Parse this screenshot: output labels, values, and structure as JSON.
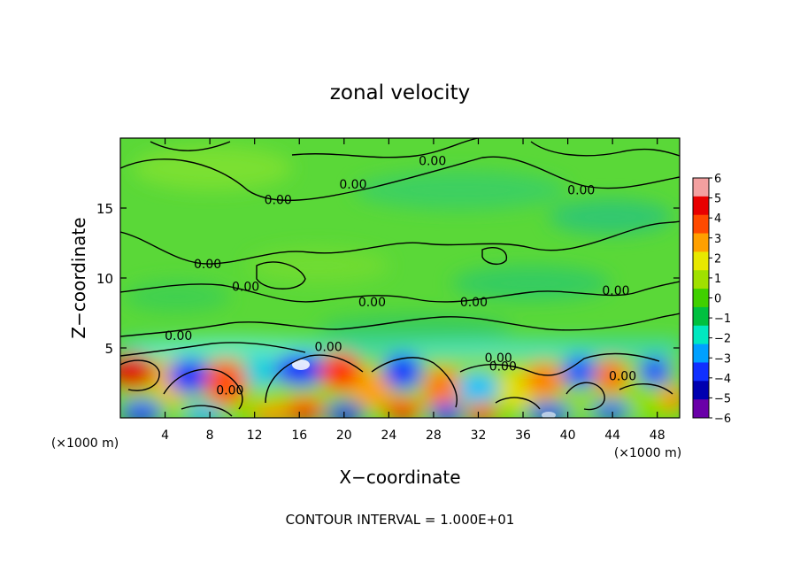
{
  "chart_data": {
    "type": "heatmap",
    "title": "zonal velocity",
    "xlabel": "X−coordinate",
    "ylabel": "Z−coordinate",
    "x_unit_label_left": "(×1000 m)",
    "x_unit_label_right": "(×1000 m)",
    "footer": "CONTOUR INTERVAL = 1.000E+01",
    "xlim": [
      0,
      50
    ],
    "ylim": [
      0,
      20
    ],
    "x_ticks": [
      4,
      8,
      12,
      16,
      20,
      24,
      28,
      32,
      36,
      40,
      44,
      48
    ],
    "y_ticks": [
      5,
      10,
      15
    ],
    "grid": false,
    "colorbar": {
      "range": [
        -6,
        6
      ],
      "tick_labels": [
        "6",
        "5",
        "4",
        "3",
        "2",
        "1",
        "0",
        "−1",
        "−2",
        "−3",
        "−4",
        "−5",
        "−6"
      ],
      "colors": [
        "#f3a0a0",
        "#e80000",
        "#ff4a00",
        "#ffa000",
        "#e8e800",
        "#a0e000",
        "#40d000",
        "#00c040",
        "#00e8c0",
        "#00a0ff",
        "#1030ff",
        "#0000b0",
        "#6a00a8"
      ]
    },
    "contour_labels": [
      {
        "text": "0.00",
        "x": 27.9,
        "y": 18.4
      },
      {
        "text": "0.00",
        "x": 14.1,
        "y": 15.6
      },
      {
        "text": "0.00",
        "x": 20.8,
        "y": 16.7
      },
      {
        "text": "0.00",
        "x": 41.2,
        "y": 16.3
      },
      {
        "text": "0.00",
        "x": 7.8,
        "y": 11.0
      },
      {
        "text": "0.00",
        "x": 11.2,
        "y": 9.4
      },
      {
        "text": "0.00",
        "x": 22.5,
        "y": 8.3
      },
      {
        "text": "0.00",
        "x": 31.6,
        "y": 8.3
      },
      {
        "text": "0.00",
        "x": 44.3,
        "y": 9.1
      },
      {
        "text": "0.00",
        "x": 5.2,
        "y": 5.9
      },
      {
        "text": "0.00",
        "x": 18.6,
        "y": 5.1
      },
      {
        "text": "0.00",
        "x": 33.8,
        "y": 4.3
      },
      {
        "text": "0.00",
        "x": 34.2,
        "y": 3.7
      },
      {
        "text": "0.00",
        "x": 9.8,
        "y": 2.0
      },
      {
        "text": "0.00",
        "x": 44.9,
        "y": 3.0
      }
    ]
  }
}
